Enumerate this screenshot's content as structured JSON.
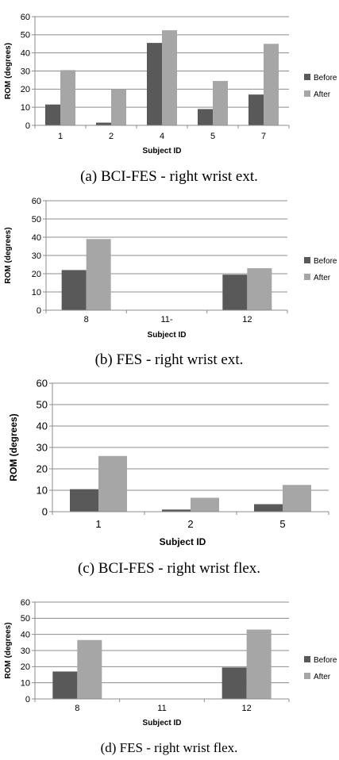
{
  "chart_data": [
    {
      "type": "bar",
      "caption": "(a) BCI-FES - right wrist ext.",
      "categories": [
        "1",
        "2",
        "4",
        "5",
        "7"
      ],
      "xlabel": "Subject ID",
      "ylabel": "ROM (degrees)",
      "ylim": [
        0,
        60
      ],
      "yticks": [
        "0",
        "10",
        "20",
        "30",
        "40",
        "50",
        "60"
      ],
      "grid": true,
      "legend": "right",
      "series": [
        {
          "name": "Before",
          "color": "#595959",
          "values": [
            11.5,
            1.5,
            45.5,
            9.0,
            17.0
          ]
        },
        {
          "name": "After",
          "color": "#a6a6a6",
          "values": [
            30.5,
            20.0,
            52.5,
            24.5,
            45.0
          ]
        }
      ]
    },
    {
      "type": "bar",
      "caption": "(b) FES - right wrist ext.",
      "categories": [
        "8",
        "11-",
        "12"
      ],
      "xlabel": "Subject ID",
      "ylabel": "ROM (degrees)",
      "ylim": [
        0,
        60
      ],
      "yticks": [
        "0",
        "10",
        "20",
        "30",
        "40",
        "50",
        "60"
      ],
      "grid": true,
      "legend": "right",
      "series": [
        {
          "name": "Before",
          "color": "#595959",
          "values": [
            22.0,
            0,
            19.5
          ]
        },
        {
          "name": "After",
          "color": "#a6a6a6",
          "values": [
            39.0,
            0,
            23.0
          ]
        }
      ]
    },
    {
      "type": "bar",
      "caption": "(c) BCI-FES - right wrist flex.",
      "categories": [
        "1",
        "2",
        "5"
      ],
      "xlabel": "Subject ID",
      "ylabel": "ROM (degrees)",
      "ylim": [
        0,
        60
      ],
      "yticks": [
        "0",
        "10",
        "20",
        "30",
        "40",
        "50",
        "60"
      ],
      "grid": true,
      "legend": "none",
      "series": [
        {
          "name": "Before",
          "color": "#595959",
          "values": [
            10.5,
            1.0,
            3.5
          ]
        },
        {
          "name": "After",
          "color": "#a6a6a6",
          "values": [
            26.0,
            6.5,
            12.5
          ]
        }
      ]
    },
    {
      "type": "bar",
      "caption": "(d) FES - right wrist flex.",
      "categories": [
        "8",
        "11",
        "12"
      ],
      "xlabel": "Subject ID",
      "ylabel": "ROM (degrees)",
      "ylim": [
        0,
        60
      ],
      "yticks": [
        "0",
        "10",
        "20",
        "30",
        "40",
        "50",
        "60"
      ],
      "grid": true,
      "legend": "right",
      "series": [
        {
          "name": "Before",
          "color": "#595959",
          "values": [
            17.0,
            0,
            19.5
          ]
        },
        {
          "name": "After",
          "color": "#a6a6a6",
          "values": [
            36.5,
            0,
            43.0
          ]
        }
      ]
    }
  ]
}
